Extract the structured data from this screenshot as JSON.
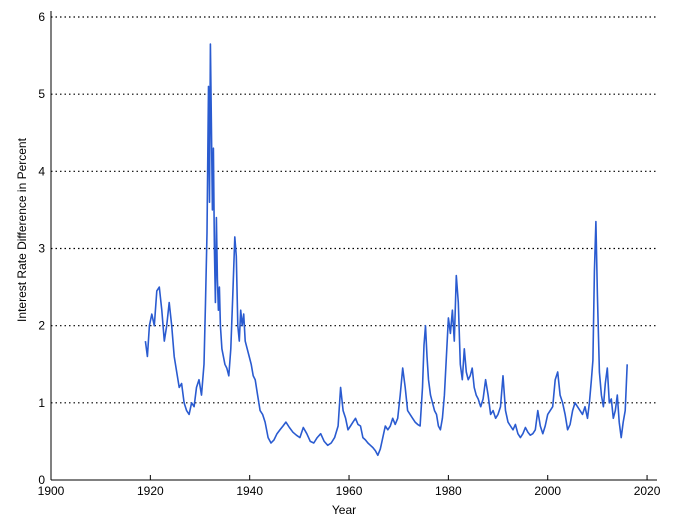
{
  "chart_data": {
    "type": "line",
    "xlabel": "Year",
    "ylabel": "Interest Rate Difference in Percent",
    "xlim": [
      1900,
      2022
    ],
    "ylim": [
      0,
      6
    ],
    "x_ticks": [
      "1900",
      "1920",
      "1940",
      "1960",
      "1980",
      "2000",
      "2020"
    ],
    "y_ticks": [
      "0",
      "1",
      "2",
      "3",
      "4",
      "5",
      "6"
    ],
    "grid": "horizontal-dotted",
    "colors": {
      "line": "#2a5bd0",
      "axis": "#000000",
      "grid": "#000000"
    },
    "series": [
      {
        "x": [
          1919,
          1919.4,
          1919.8,
          1920.3,
          1920.8,
          1921.3,
          1921.8,
          1922.3,
          1922.8,
          1923.3,
          1923.8,
          1924.3,
          1924.8,
          1925.3,
          1925.8,
          1926.3,
          1926.8,
          1927.3,
          1927.8,
          1928.3,
          1928.8,
          1929.3,
          1929.8,
          1930.3,
          1930.8,
          1931.1,
          1931.4,
          1931.7,
          1931.9,
          1932.1,
          1932.3,
          1932.5,
          1932.7,
          1932.9,
          1933.1,
          1933.3,
          1933.5,
          1933.7,
          1933.9,
          1934.1,
          1934.4,
          1934.7,
          1935,
          1935.4,
          1935.8,
          1936.2,
          1936.6,
          1937,
          1937.3,
          1937.6,
          1937.9,
          1938.2,
          1938.5,
          1938.8,
          1939.1,
          1939.5,
          1939.9,
          1940.3,
          1940.7,
          1941.1,
          1941.6,
          1942.1,
          1942.6,
          1943.1,
          1943.7,
          1944.3,
          1944.9,
          1945.5,
          1946.1,
          1946.7,
          1947.3,
          1948,
          1948.7,
          1949.4,
          1950.1,
          1950.8,
          1951.5,
          1952.2,
          1952.9,
          1953.6,
          1954.3,
          1955,
          1955.7,
          1956.4,
          1957.1,
          1957.8,
          1958.3,
          1958.8,
          1959.3,
          1959.8,
          1960.3,
          1960.8,
          1961.3,
          1961.8,
          1962.3,
          1962.8,
          1963.3,
          1963.8,
          1964.3,
          1964.8,
          1965.3,
          1965.8,
          1966.3,
          1966.8,
          1967.3,
          1967.8,
          1968.3,
          1968.8,
          1969.3,
          1969.8,
          1970.3,
          1970.8,
          1971.3,
          1971.8,
          1972.3,
          1972.8,
          1973.3,
          1973.8,
          1974.3,
          1974.8,
          1975.1,
          1975.4,
          1975.7,
          1976,
          1976.4,
          1976.8,
          1977.2,
          1977.6,
          1978,
          1978.4,
          1978.8,
          1979.2,
          1979.6,
          1980,
          1980.4,
          1980.8,
          1981.2,
          1981.6,
          1982,
          1982.4,
          1982.8,
          1983.2,
          1983.6,
          1984,
          1984.4,
          1984.8,
          1985.2,
          1985.6,
          1986,
          1986.5,
          1987,
          1987.5,
          1988,
          1988.5,
          1989,
          1989.5,
          1990,
          1990.5,
          1991,
          1991.5,
          1992,
          1992.5,
          1993,
          1993.5,
          1994,
          1994.5,
          1995,
          1995.5,
          1996,
          1996.5,
          1997,
          1997.5,
          1998,
          1998.5,
          1999,
          1999.5,
          2000,
          2000.5,
          2001,
          2001.5,
          2002,
          2002.5,
          2003,
          2003.5,
          2004,
          2004.5,
          2005,
          2005.5,
          2006,
          2006.5,
          2007,
          2007.5,
          2008,
          2008.4,
          2008.8,
          2009.1,
          2009.4,
          2009.7,
          2010,
          2010.4,
          2010.8,
          2011.2,
          2011.6,
          2012,
          2012.4,
          2012.8,
          2013.2,
          2013.6,
          2014,
          2014.4,
          2014.8,
          2015.2,
          2015.6,
          2016
        ],
        "y": [
          1.8,
          1.6,
          2.0,
          2.15,
          2.0,
          2.45,
          2.5,
          2.2,
          1.8,
          2.0,
          2.3,
          2.0,
          1.6,
          1.4,
          1.2,
          1.25,
          1.0,
          0.9,
          0.85,
          1.0,
          0.95,
          1.2,
          1.3,
          1.1,
          1.5,
          2.3,
          3.2,
          5.1,
          3.6,
          5.65,
          4.6,
          3.5,
          4.3,
          3.0,
          2.3,
          3.4,
          2.6,
          2.2,
          2.5,
          2.0,
          1.7,
          1.6,
          1.5,
          1.45,
          1.35,
          1.7,
          2.4,
          3.15,
          2.9,
          2.0,
          1.8,
          2.2,
          2.0,
          2.15,
          1.8,
          1.7,
          1.6,
          1.5,
          1.35,
          1.3,
          1.1,
          0.9,
          0.85,
          0.75,
          0.55,
          0.48,
          0.52,
          0.6,
          0.65,
          0.7,
          0.75,
          0.68,
          0.62,
          0.58,
          0.55,
          0.68,
          0.6,
          0.5,
          0.48,
          0.55,
          0.6,
          0.5,
          0.45,
          0.48,
          0.55,
          0.7,
          1.2,
          0.9,
          0.8,
          0.65,
          0.7,
          0.75,
          0.8,
          0.72,
          0.7,
          0.55,
          0.52,
          0.48,
          0.45,
          0.42,
          0.38,
          0.32,
          0.4,
          0.55,
          0.7,
          0.65,
          0.7,
          0.8,
          0.72,
          0.8,
          1.1,
          1.45,
          1.2,
          0.9,
          0.85,
          0.8,
          0.75,
          0.72,
          0.7,
          1.2,
          1.75,
          2.0,
          1.6,
          1.3,
          1.1,
          1.0,
          0.9,
          0.85,
          0.7,
          0.65,
          0.8,
          1.1,
          1.6,
          2.1,
          1.9,
          2.2,
          1.8,
          2.65,
          2.3,
          1.5,
          1.3,
          1.7,
          1.4,
          1.3,
          1.35,
          1.45,
          1.2,
          1.1,
          1.05,
          0.95,
          1.05,
          1.3,
          1.1,
          0.85,
          0.9,
          0.8,
          0.85,
          0.95,
          1.35,
          0.9,
          0.75,
          0.7,
          0.65,
          0.72,
          0.6,
          0.55,
          0.6,
          0.68,
          0.62,
          0.58,
          0.6,
          0.65,
          0.9,
          0.7,
          0.6,
          0.7,
          0.85,
          0.9,
          0.95,
          1.3,
          1.4,
          1.1,
          1.0,
          0.85,
          0.65,
          0.72,
          0.9,
          1.0,
          0.95,
          0.9,
          0.85,
          0.95,
          0.8,
          1.0,
          1.3,
          1.55,
          2.7,
          3.35,
          2.4,
          1.4,
          1.1,
          0.95,
          1.25,
          1.45,
          1.0,
          1.05,
          0.8,
          0.9,
          1.1,
          0.75,
          0.55,
          0.75,
          0.9,
          1.5
        ]
      }
    ]
  }
}
